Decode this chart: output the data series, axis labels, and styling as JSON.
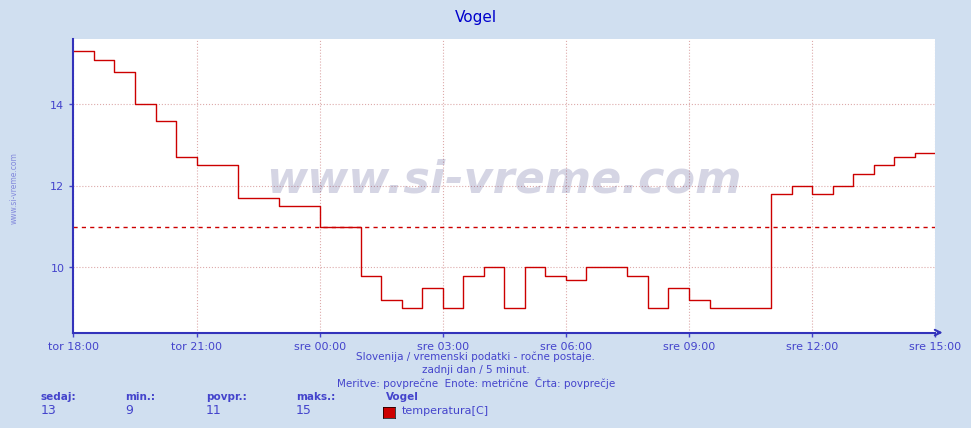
{
  "title": "Vogel",
  "title_color": "#0000cc",
  "background_color": "#d0dff0",
  "plot_bg_color": "#ffffff",
  "line_color": "#cc0000",
  "avg_line_color": "#cc0000",
  "avg_value": 11,
  "axis_color": "#4444cc",
  "spine_color": "#3333bb",
  "grid_color": "#ddaaaa",
  "watermark": "www.si-vreme.com",
  "subtitle1": "Slovenija / vremenski podatki - ročne postaje.",
  "subtitle2": "zadnji dan / 5 minut.",
  "subtitle3": "Meritve: povprečne  Enote: metrične  Črta: povprečje",
  "legend_station": "Vogel",
  "legend_label": "temperatura[C]",
  "stats_sedaj": 13,
  "stats_min": 9,
  "stats_povpr": 11,
  "stats_maks": 15,
  "xlim": [
    0,
    252
  ],
  "ylim": [
    8.4,
    15.6
  ],
  "yticks": [
    10,
    12,
    14
  ],
  "xtick_labels": [
    "tor 18:00",
    "tor 21:00",
    "sre 00:00",
    "sre 03:00",
    "sre 06:00",
    "sre 09:00",
    "sre 12:00",
    "sre 15:00"
  ],
  "xtick_positions": [
    0,
    36,
    72,
    108,
    144,
    180,
    216,
    252
  ],
  "data_x": [
    0,
    6,
    6,
    12,
    12,
    18,
    18,
    24,
    24,
    30,
    30,
    36,
    36,
    48,
    48,
    60,
    60,
    72,
    72,
    84,
    84,
    90,
    90,
    96,
    96,
    102,
    102,
    108,
    108,
    114,
    114,
    120,
    120,
    126,
    126,
    132,
    132,
    138,
    138,
    144,
    144,
    150,
    150,
    162,
    162,
    168,
    168,
    174,
    174,
    180,
    180,
    186,
    186,
    192,
    192,
    204,
    204,
    210,
    210,
    216,
    216,
    222,
    222,
    228,
    228,
    234,
    234,
    240,
    240,
    246,
    246,
    252
  ],
  "data_y": [
    15.3,
    15.3,
    15.1,
    15.1,
    14.8,
    14.8,
    14.0,
    14.0,
    13.6,
    13.6,
    12.7,
    12.7,
    12.5,
    12.5,
    11.7,
    11.7,
    11.5,
    11.5,
    11.0,
    11.0,
    9.8,
    9.8,
    9.2,
    9.2,
    9.0,
    9.0,
    9.5,
    9.5,
    9.0,
    9.0,
    9.8,
    9.8,
    10.0,
    10.0,
    9.0,
    9.0,
    10.0,
    10.0,
    9.8,
    9.8,
    9.7,
    9.7,
    10.0,
    10.0,
    9.8,
    9.8,
    9.0,
    9.0,
    9.5,
    9.5,
    9.2,
    9.2,
    9.0,
    9.0,
    9.0,
    9.0,
    11.8,
    11.8,
    12.0,
    12.0,
    11.8,
    11.8,
    12.0,
    12.0,
    12.3,
    12.3,
    12.5,
    12.5,
    12.7,
    12.7,
    12.8,
    12.8
  ]
}
